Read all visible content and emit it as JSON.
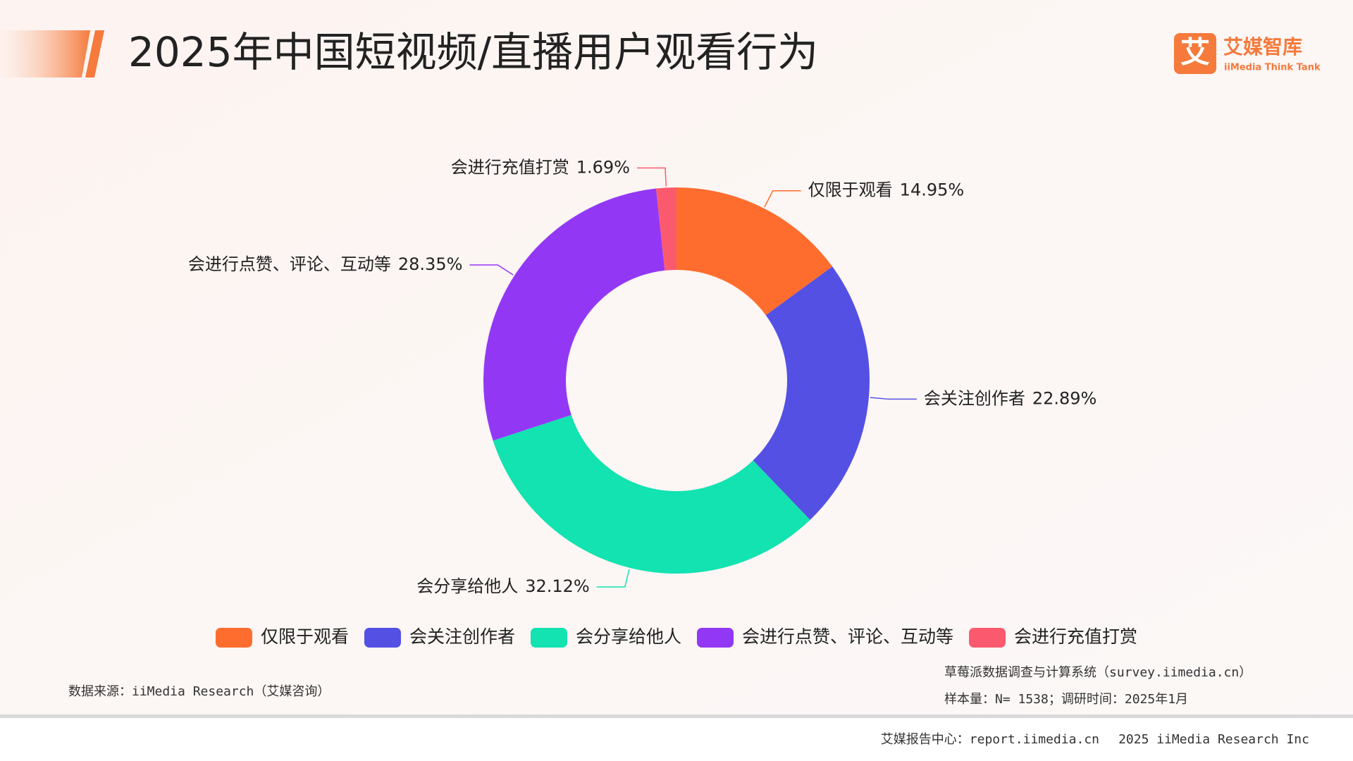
{
  "chart_data": {
    "type": "donut",
    "title": "2025年中国短视频/直播用户观看行为",
    "categories": [
      "仅限于观看",
      "会关注创作者",
      "会分享给他人",
      "会进行点赞、评论、互动等",
      "会进行充值打赏"
    ],
    "values": [
      14.95,
      22.89,
      32.12,
      28.35,
      1.69
    ],
    "value_labels": [
      "14.95%",
      "22.89%",
      "32.12%",
      "28.35%",
      "1.69%"
    ],
    "colors": [
      "#ff6d2e",
      "#5450e4",
      "#12e3b0",
      "#9238f5",
      "#fb5a6e"
    ],
    "legend": "bottom"
  },
  "logo": {
    "name": "艾媒智库",
    "sub": "iiMedia Think Tank",
    "icon": "艾"
  },
  "source": "数据来源：iiMedia Research（艾媒咨询）",
  "notes": [
    "草莓派数据调查与计算系统（survey.iimedia.cn）",
    "样本量：N= 1538；调研时间：2025年1月"
  ],
  "footer": [
    "艾媒报告中心：report.iimedia.cn",
    "2025 iiMedia Research Inc"
  ]
}
